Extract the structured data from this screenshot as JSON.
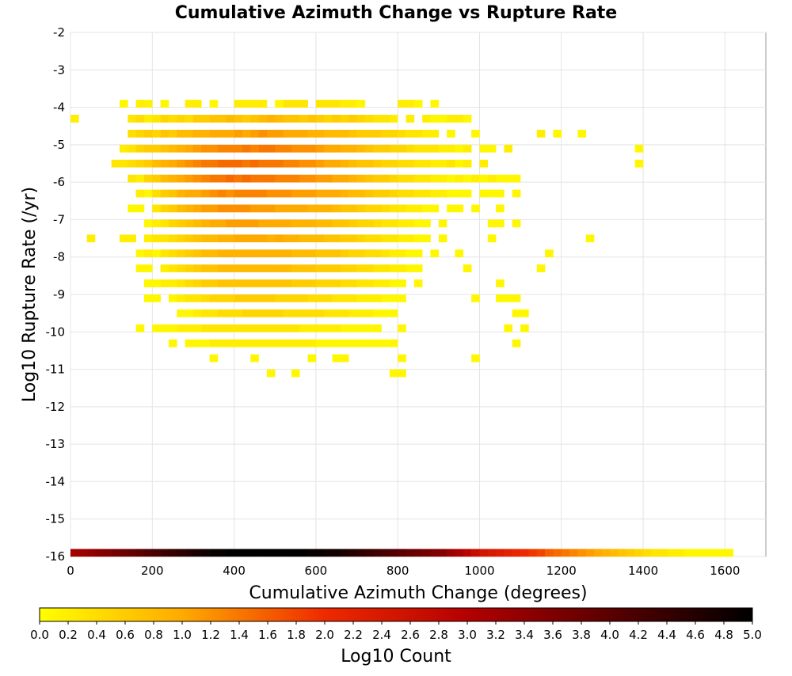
{
  "chart_data": {
    "type": "heatmap",
    "title": "Cumulative Azimuth Change vs Rupture Rate",
    "xlabel": "Cumulative Azimuth Change (degrees)",
    "ylabel": "Log10 Rupture Rate (/yr)",
    "xlim": [
      0,
      1700
    ],
    "ylim": [
      -16,
      -2
    ],
    "x_ticks": [
      "0",
      "200",
      "400",
      "600",
      "800",
      "1000",
      "1200",
      "1400",
      "1600"
    ],
    "y_ticks": [
      "-2",
      "-3",
      "-4",
      "-5",
      "-6",
      "-7",
      "-8",
      "-9",
      "-10",
      "-11",
      "-12",
      "-13",
      "-14",
      "-15",
      "-16"
    ],
    "grid": true,
    "bin_width_x": 20,
    "bin_height_y": 0.2,
    "cell_rows": [
      {
        "y": -4.0,
        "x_start": 120,
        "values": [
          0.1,
          0,
          0.2,
          0.15,
          0,
          0.1,
          0,
          0,
          0.2,
          0.2,
          0,
          0.1,
          0,
          0,
          0.2,
          0.2,
          0.2,
          0.2,
          0,
          0.1,
          0.3,
          0.3,
          0.3,
          0,
          0.3,
          0.3,
          0.3,
          0.2,
          0.2,
          0.1,
          0,
          0,
          0,
          0,
          0.2,
          0.2,
          0.1,
          0,
          0.1
        ]
      },
      {
        "y": -4.4,
        "x_start": 0,
        "values": [
          0.2
        ]
      },
      {
        "y": -4.4,
        "x_start": 140,
        "values": [
          0.3,
          0.4,
          0.2,
          0.3,
          0.5,
          0.4,
          0.5,
          0.4,
          0.6,
          0.6,
          0.7,
          0.7,
          0.8,
          0.7,
          0.6,
          0.7,
          0.8,
          0.9,
          0.8,
          0.7,
          0.7,
          0.6,
          0.7,
          0.6,
          0.5,
          0.6,
          0.5,
          0.6,
          0.5,
          0.4,
          0.3,
          0.3,
          0.2,
          0,
          0.2,
          0,
          0.2,
          0.1,
          0.1,
          0.2,
          0.2,
          0.1
        ]
      },
      {
        "y": -4.8,
        "x_start": 140,
        "values": [
          0.4,
          0.5,
          0.6,
          0.5,
          0.7,
          0.6,
          0.8,
          0.8,
          0.9,
          0.9,
          1.0,
          1.0,
          1.0,
          1.1,
          1.0,
          1.1,
          1.2,
          1.1,
          1.1,
          1.0,
          1.0,
          1.0,
          0.9,
          0.9,
          0.8,
          0.8,
          0.8,
          0.7,
          0.6,
          0.6,
          0.6,
          0.5,
          0.5,
          0.4,
          0.3,
          0.3,
          0.2,
          0.2,
          0,
          0.1,
          0,
          0,
          0.1,
          0,
          0,
          0,
          0,
          0,
          0,
          0,
          0.2,
          0,
          0.1,
          0,
          0,
          0.1
        ]
      },
      {
        "y": -5.2,
        "x_start": 120,
        "values": [
          0.2,
          0.3,
          0.5,
          0.6,
          0.6,
          0.7,
          0.8,
          0.9,
          1.0,
          1.1,
          1.2,
          1.2,
          1.3,
          1.3,
          1.3,
          1.4,
          1.3,
          1.4,
          1.4,
          1.3,
          1.3,
          1.2,
          1.2,
          1.2,
          1.1,
          1.0,
          1.0,
          0.9,
          0.9,
          0.8,
          0.7,
          0.6,
          0.6,
          0.5,
          0.5,
          0.4,
          0.3,
          0.3,
          0.3,
          0.2,
          0.2,
          0.1,
          0.2,
          0,
          0.1,
          0.1,
          0,
          0.2,
          0,
          0,
          0,
          0,
          0,
          0,
          0,
          0,
          0,
          0,
          0,
          0,
          0,
          0,
          0,
          0.1
        ]
      },
      {
        "y": -5.6,
        "x_start": 100,
        "values": [
          0.3,
          0.3,
          0.4,
          0.5,
          0.6,
          0.8,
          0.9,
          1.0,
          1.1,
          1.2,
          1.3,
          1.4,
          1.4,
          1.5,
          1.5,
          1.5,
          1.4,
          1.5,
          1.4,
          1.4,
          1.4,
          1.3,
          1.3,
          1.2,
          1.2,
          1.1,
          1.0,
          1.0,
          0.9,
          0.8,
          0.7,
          0.7,
          0.6,
          0.5,
          0.5,
          0.4,
          0.4,
          0.3,
          0.3,
          0.2,
          0.2,
          0.3,
          0.1,
          0.2,
          0,
          0.2,
          0,
          0,
          0,
          0,
          0,
          0,
          0,
          0,
          0,
          0,
          0,
          0,
          0,
          0,
          0,
          0,
          0,
          0,
          0.1
        ]
      },
      {
        "y": -6.0,
        "x_start": 140,
        "values": [
          0.3,
          0.2,
          0.5,
          0.6,
          0.8,
          0.9,
          1.0,
          1.1,
          1.2,
          1.3,
          1.4,
          1.4,
          1.5,
          1.4,
          1.5,
          1.4,
          1.4,
          1.4,
          1.3,
          1.3,
          1.3,
          1.2,
          1.2,
          1.1,
          1.1,
          1.0,
          1.0,
          0.9,
          0.8,
          0.7,
          0.6,
          0.6,
          0.5,
          0.4,
          0.4,
          0.3,
          0.3,
          0.2,
          0.2,
          0.1,
          0.2,
          0.1,
          0.2,
          0.1,
          0.2,
          0.1,
          0.1,
          0.1
        ]
      },
      {
        "y": -6.4,
        "x_start": 160,
        "values": [
          0.2,
          0.1,
          0.4,
          0.6,
          0.7,
          0.9,
          1.0,
          1.0,
          1.1,
          1.2,
          1.3,
          1.2,
          1.3,
          1.3,
          1.3,
          1.3,
          1.2,
          1.2,
          1.2,
          1.1,
          1.1,
          1.1,
          1.0,
          1.0,
          1.0,
          0.9,
          0.8,
          0.8,
          0.7,
          0.6,
          0.6,
          0.5,
          0.4,
          0.4,
          0.3,
          0.3,
          0.2,
          0.2,
          0.1,
          0.1,
          0.1,
          0,
          0.1,
          0.1,
          0.1,
          0,
          0.1
        ]
      },
      {
        "y": -6.8,
        "x_start": 140,
        "values": [
          0.1,
          0.1,
          0,
          0.3,
          0.5,
          0.6,
          0.8,
          0.9,
          1.0,
          1.1,
          1.1,
          1.2,
          1.2,
          1.2,
          1.2,
          1.1,
          1.1,
          1.1,
          1.0,
          1.0,
          1.0,
          1.0,
          0.9,
          0.9,
          0.9,
          0.8,
          0.7,
          0.7,
          0.6,
          0.5,
          0.5,
          0.4,
          0.3,
          0.3,
          0.2,
          0.2,
          0.1,
          0.1,
          0,
          0.1,
          0.1,
          0,
          0.1,
          0,
          0,
          0.1
        ]
      },
      {
        "y": -7.2,
        "x_start": 180,
        "values": [
          0.1,
          0.2,
          0.3,
          0.5,
          0.6,
          0.7,
          0.8,
          0.9,
          1.0,
          1.0,
          1.1,
          1.1,
          1.1,
          1.1,
          1.0,
          1.0,
          1.0,
          1.0,
          0.9,
          0.9,
          0.9,
          0.8,
          0.8,
          0.7,
          0.7,
          0.6,
          0.5,
          0.5,
          0.4,
          0.3,
          0.3,
          0.2,
          0.2,
          0.1,
          0.1,
          0,
          0.1,
          0,
          0,
          0,
          0,
          0,
          0.1,
          0.1,
          0,
          0.1
        ]
      },
      {
        "y": -7.6,
        "x_start": 40,
        "values": [
          0.2,
          0,
          0,
          0,
          0.2,
          0.2,
          0,
          0.2,
          0.3,
          0.3,
          0.4,
          0.5,
          0.6,
          0.7,
          0.8,
          0.8,
          0.9,
          0.9,
          1.0,
          1.0,
          1.0,
          1.0,
          0.9,
          1.0,
          0.9,
          0.9,
          0.8,
          0.8,
          0.8,
          0.7,
          0.7,
          0.6,
          0.6,
          0.5,
          0.4,
          0.4,
          0.3,
          0.3,
          0.2,
          0.2,
          0.1,
          0.1,
          0,
          0.1,
          0,
          0,
          0,
          0,
          0,
          0.1,
          0,
          0,
          0,
          0,
          0,
          0,
          0,
          0,
          0,
          0,
          0,
          0.1
        ]
      },
      {
        "y": -8.0,
        "x_start": 160,
        "values": [
          0.1,
          0.2,
          0.1,
          0.3,
          0.4,
          0.5,
          0.6,
          0.7,
          0.8,
          0.8,
          0.9,
          0.9,
          0.9,
          0.9,
          0.9,
          0.9,
          0.9,
          0.9,
          0.9,
          0.8,
          0.8,
          0.8,
          0.7,
          0.7,
          0.7,
          0.6,
          0.5,
          0.5,
          0.4,
          0.4,
          0.3,
          0.2,
          0.2,
          0.1,
          0.1,
          0,
          0.1,
          0,
          0,
          0.1,
          0,
          0,
          0,
          0,
          0,
          0,
          0,
          0,
          0,
          0,
          0.1
        ]
      },
      {
        "y": -8.4,
        "x_start": 160,
        "values": [
          0.1,
          0.1,
          0,
          0.2,
          0.3,
          0.4,
          0.5,
          0.6,
          0.7,
          0.7,
          0.8,
          0.8,
          0.8,
          0.8,
          0.8,
          0.8,
          0.8,
          0.8,
          0.8,
          0.7,
          0.7,
          0.7,
          0.6,
          0.6,
          0.6,
          0.5,
          0.5,
          0.4,
          0.4,
          0.3,
          0.3,
          0.2,
          0.2,
          0.1,
          0.1,
          0,
          0,
          0,
          0,
          0,
          0.1,
          0,
          0,
          0,
          0,
          0,
          0,
          0,
          0,
          0.1
        ]
      },
      {
        "y": -8.8,
        "x_start": 180,
        "values": [
          0.1,
          0.1,
          0.2,
          0.2,
          0.3,
          0.4,
          0.5,
          0.6,
          0.6,
          0.7,
          0.7,
          0.7,
          0.7,
          0.7,
          0.7,
          0.7,
          0.7,
          0.7,
          0.6,
          0.6,
          0.6,
          0.5,
          0.5,
          0.5,
          0.4,
          0.4,
          0.3,
          0.3,
          0.2,
          0.2,
          0.1,
          0.1,
          0,
          0.1,
          0,
          0,
          0,
          0,
          0,
          0,
          0,
          0,
          0,
          0.1
        ]
      },
      {
        "y": -9.2,
        "x_start": 180,
        "values": [
          0.1,
          0.1,
          0,
          0.1,
          0.2,
          0.3,
          0.3,
          0.4,
          0.5,
          0.5,
          0.5,
          0.6,
          0.6,
          0.6,
          0.6,
          0.6,
          0.5,
          0.5,
          0.5,
          0.5,
          0.4,
          0.4,
          0.4,
          0.3,
          0.3,
          0.3,
          0.2,
          0.2,
          0.2,
          0.1,
          0.1,
          0.1,
          0,
          0,
          0,
          0,
          0,
          0,
          0,
          0,
          0.1,
          0,
          0,
          0.1,
          0.1,
          0.1
        ]
      },
      {
        "y": -9.6,
        "x_start": 200,
        "values": [
          0,
          0,
          0,
          0.1,
          0.1,
          0.2,
          0.3,
          0.3,
          0.4,
          0.4,
          0.4,
          0.5,
          0.5,
          0.5,
          0.5,
          0.5,
          0.4,
          0.4,
          0.4,
          0.4,
          0.4,
          0.3,
          0.3,
          0.3,
          0.2,
          0.2,
          0.2,
          0.1,
          0.1,
          0.1,
          0,
          0,
          0,
          0,
          0,
          0,
          0,
          0,
          0,
          0,
          0,
          0,
          0,
          0,
          0.1,
          0.1
        ]
      },
      {
        "y": -10.0,
        "x_start": 160,
        "values": [
          0.1,
          0,
          0.1,
          0.1,
          0.1,
          0.2,
          0.2,
          0.2,
          0.3,
          0.3,
          0.3,
          0.3,
          0.3,
          0.3,
          0.3,
          0.3,
          0.3,
          0.3,
          0.3,
          0.3,
          0.2,
          0.2,
          0.2,
          0.2,
          0.2,
          0.1,
          0.1,
          0.1,
          0.1,
          0.1,
          0,
          0,
          0.1,
          0,
          0,
          0,
          0,
          0,
          0,
          0,
          0,
          0,
          0,
          0,
          0,
          0.1,
          0,
          0.1
        ]
      },
      {
        "y": -10.4,
        "x_start": 240,
        "values": [
          0.1,
          0,
          0.1,
          0.1,
          0.1,
          0.2,
          0.2,
          0.2,
          0.2,
          0.2,
          0.2,
          0.2,
          0.2,
          0.2,
          0.2,
          0.2,
          0.2,
          0.2,
          0.1,
          0.1,
          0.1,
          0.1,
          0.1,
          0.1,
          0.1,
          0.1,
          0.1,
          0.1,
          0,
          0,
          0,
          0,
          0,
          0,
          0,
          0,
          0,
          0,
          0,
          0,
          0,
          0,
          0.1
        ]
      },
      {
        "y": -10.8,
        "x_start": 340,
        "values": [
          0.1,
          0,
          0,
          0,
          0,
          0.1,
          0,
          0,
          0,
          0,
          0,
          0,
          0.1,
          0,
          0,
          0.1,
          0.1,
          0,
          0,
          0,
          0,
          0,
          0,
          0.1,
          0,
          0,
          0,
          0,
          0,
          0,
          0,
          0,
          0.1
        ]
      },
      {
        "y": -11.2,
        "x_start": 480,
        "values": [
          0.1,
          0,
          0,
          0.1,
          0,
          0,
          0,
          0,
          0,
          0,
          0,
          0,
          0,
          0,
          0,
          0.1,
          0.1
        ]
      },
      {
        "y": -16.0,
        "x_start": 0,
        "values": [
          3.2,
          3.3,
          3.4,
          3.5,
          3.6,
          3.7,
          3.8,
          3.9,
          4.0,
          4.1,
          4.2,
          4.3,
          4.4,
          4.5,
          4.6,
          4.7,
          4.8,
          4.9,
          4.9,
          5.0,
          5.0,
          5.0,
          5.0,
          5.0,
          5.0,
          5.0,
          5.0,
          5.0,
          5.0,
          4.9,
          4.9,
          4.8,
          4.8,
          4.7,
          4.6,
          4.5,
          4.4,
          4.3,
          4.2,
          4.1,
          4.0,
          3.9,
          3.8,
          3.7,
          3.6,
          3.5,
          3.3,
          3.1,
          2.9,
          2.7,
          2.5,
          2.4,
          2.3,
          2.2,
          2.1,
          2.0,
          1.9,
          1.8,
          1.6,
          1.5,
          1.4,
          1.3,
          1.2,
          1.1,
          1.0,
          0.9,
          0.8,
          0.7,
          0.6,
          0.5,
          0.4,
          0.3,
          0.3,
          0.2,
          0.2,
          0.1,
          0.1,
          0.1,
          0.1,
          0.1,
          0.1
        ]
      }
    ],
    "colorbar": {
      "label": "Log10 Count",
      "min": 0.0,
      "max": 5.0,
      "ticks": [
        "0.0",
        "0.2",
        "0.4",
        "0.6",
        "0.8",
        "1.0",
        "1.2",
        "1.4",
        "1.6",
        "1.8",
        "2.0",
        "2.2",
        "2.4",
        "2.6",
        "2.8",
        "3.0",
        "3.2",
        "3.4",
        "3.6",
        "3.8",
        "4.0",
        "4.2",
        "4.4",
        "4.6",
        "4.8",
        "5.0"
      ],
      "stops": [
        {
          "v": 0.0,
          "color": "#ffff00"
        },
        {
          "v": 1.0,
          "color": "#ffaa00"
        },
        {
          "v": 2.0,
          "color": "#ee2a00"
        },
        {
          "v": 3.0,
          "color": "#b40000"
        },
        {
          "v": 4.0,
          "color": "#5a0000"
        },
        {
          "v": 5.0,
          "color": "#000000"
        }
      ]
    }
  }
}
